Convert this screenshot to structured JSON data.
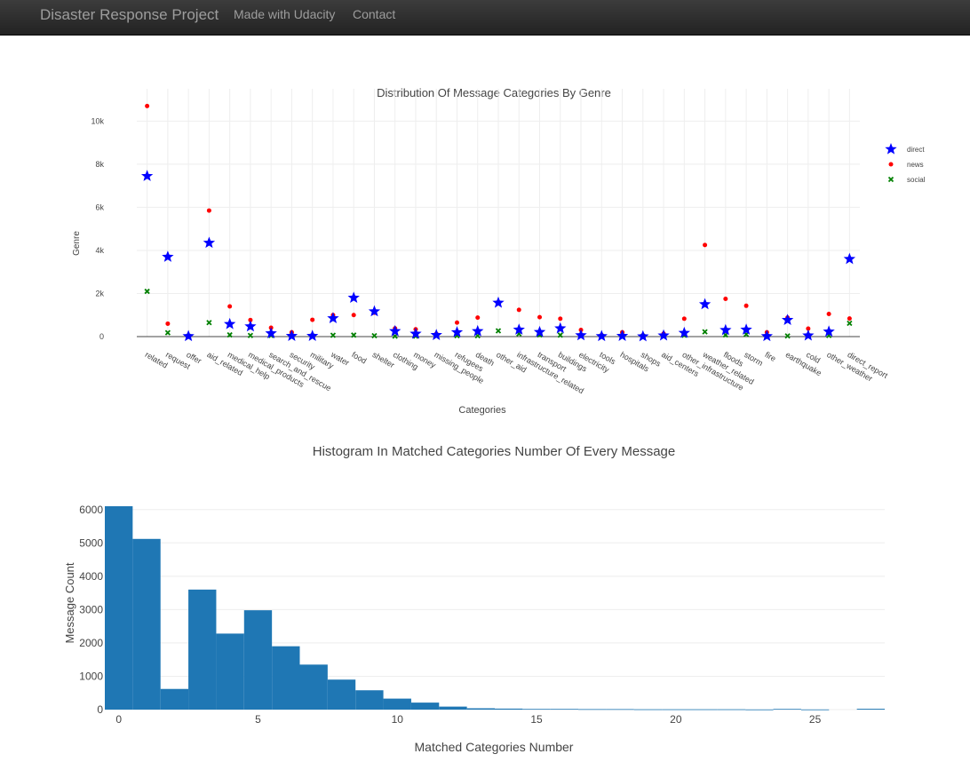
{
  "navbar": {
    "brand": "Disaster Response Project",
    "links": [
      "Made with Udacity",
      "Contact"
    ]
  },
  "colors": {
    "direct": "#0000ff",
    "news": "#ff0000",
    "social": "#008000",
    "histogram": "#1f77b4"
  },
  "chart_data": [
    {
      "type": "scatter",
      "title": "Distribution Of Message Categories By Genre",
      "xlabel": "Categories",
      "ylabel": "Genre",
      "categories": [
        "related",
        "request",
        "offer",
        "aid_related",
        "medical_help",
        "medical_products",
        "search_and_rescue",
        "security",
        "military",
        "water",
        "food",
        "shelter",
        "clothing",
        "money",
        "missing_people",
        "refugees",
        "death",
        "other_aid",
        "infrastructure_related",
        "transport",
        "buildings",
        "electricity",
        "tools",
        "hospitals",
        "shops",
        "aid_centers",
        "other_infrastructure",
        "weather_related",
        "floods",
        "storm",
        "fire",
        "earthquake",
        "cold",
        "other_weather",
        "direct_report"
      ],
      "series": [
        {
          "name": "direct",
          "marker": "star",
          "values": [
            7450,
            3700,
            20,
            4350,
            580,
            470,
            150,
            30,
            30,
            850,
            1800,
            1170,
            250,
            130,
            70,
            200,
            250,
            1570,
            320,
            210,
            380,
            60,
            20,
            30,
            10,
            50,
            170,
            1500,
            300,
            320,
            20,
            770,
            50,
            230,
            3600
          ]
        },
        {
          "name": "news",
          "marker": "circle",
          "values": [
            10700,
            600,
            20,
            5850,
            1400,
            770,
            410,
            200,
            780,
            1000,
            1000,
            1110,
            380,
            340,
            130,
            650,
            880,
            1600,
            1240,
            900,
            830,
            310,
            70,
            200,
            60,
            140,
            830,
            4250,
            1750,
            1430,
            200,
            880,
            370,
            1050,
            840
          ]
        },
        {
          "name": "social",
          "marker": "x",
          "values": [
            2100,
            180,
            10,
            650,
            80,
            50,
            50,
            20,
            20,
            60,
            70,
            40,
            20,
            20,
            20,
            40,
            40,
            270,
            130,
            80,
            70,
            30,
            10,
            20,
            10,
            20,
            60,
            220,
            80,
            110,
            10,
            30,
            30,
            50,
            620
          ]
        }
      ],
      "yticks": [
        "0",
        "2k",
        "4k",
        "6k",
        "8k",
        "10k"
      ],
      "ylim": [
        0,
        11500
      ],
      "legend": "top-right",
      "grid": true
    },
    {
      "type": "bar",
      "title": "Histogram In Matched Categories Number Of Every Message",
      "xlabel": "Matched Categories Number",
      "ylabel": "Message Count",
      "xticks": [
        "0",
        "5",
        "10",
        "15",
        "20",
        "25"
      ],
      "yticks": [
        "0",
        "1000",
        "2000",
        "3000",
        "4000",
        "5000",
        "6000"
      ],
      "ylim": [
        0,
        6100
      ],
      "xlim": [
        -0.5,
        27.5
      ],
      "bins": [
        0,
        1,
        2,
        3,
        4,
        5,
        6,
        7,
        8,
        9,
        10,
        11,
        12,
        13,
        14,
        15,
        16,
        17,
        18,
        19,
        20,
        21,
        22,
        23,
        24,
        25,
        26,
        27
      ],
      "values": [
        6100,
        5120,
        620,
        3600,
        2280,
        2980,
        1900,
        1350,
        900,
        580,
        330,
        210,
        90,
        40,
        30,
        20,
        20,
        15,
        15,
        10,
        10,
        10,
        10,
        5,
        20,
        5,
        0,
        25
      ],
      "grid": true
    }
  ]
}
